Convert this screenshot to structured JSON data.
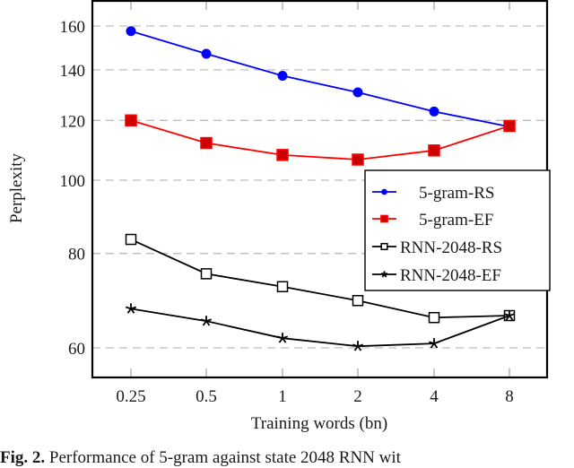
{
  "chart_data": {
    "type": "line",
    "title": "",
    "xlabel": "Training words (bn)",
    "ylabel": "Perplexity",
    "x_scale": "log2",
    "y_scale": "log",
    "categories": [
      "0.25",
      "0.5",
      "1",
      "2",
      "4",
      "8"
    ],
    "x": [
      0.25,
      0.5,
      1,
      2,
      4,
      8
    ],
    "yticks": [
      60,
      80,
      100,
      120,
      140,
      160
    ],
    "ylim": [
      54,
      170
    ],
    "grid": "horizontal dashed",
    "legend_position": "inside right",
    "series": [
      {
        "name": "5-gram-RS",
        "color": "#0000ff",
        "marker": "circle",
        "values": [
          157.5,
          147.0,
          137.5,
          130.7,
          123.3,
          117.7
        ]
      },
      {
        "name": "5-gram-EF",
        "color": "#ff0000",
        "marker": "square-filled",
        "values": [
          120.0,
          112.0,
          108.0,
          106.5,
          109.5,
          118.0
        ]
      },
      {
        "name": "RNN-2048-RS",
        "color": "#000000",
        "marker": "square-open",
        "values": [
          83.5,
          75.2,
          72.3,
          69.3,
          65.8,
          66.2
        ]
      },
      {
        "name": "RNN-2048-EF",
        "color": "#000000",
        "marker": "star",
        "values": [
          67.6,
          65.1,
          61.8,
          60.3,
          60.8,
          66.2
        ]
      }
    ]
  },
  "caption": {
    "label": "Fig. 2.",
    "text": "Performance of 5-gram against state 2048 RNN wit"
  }
}
